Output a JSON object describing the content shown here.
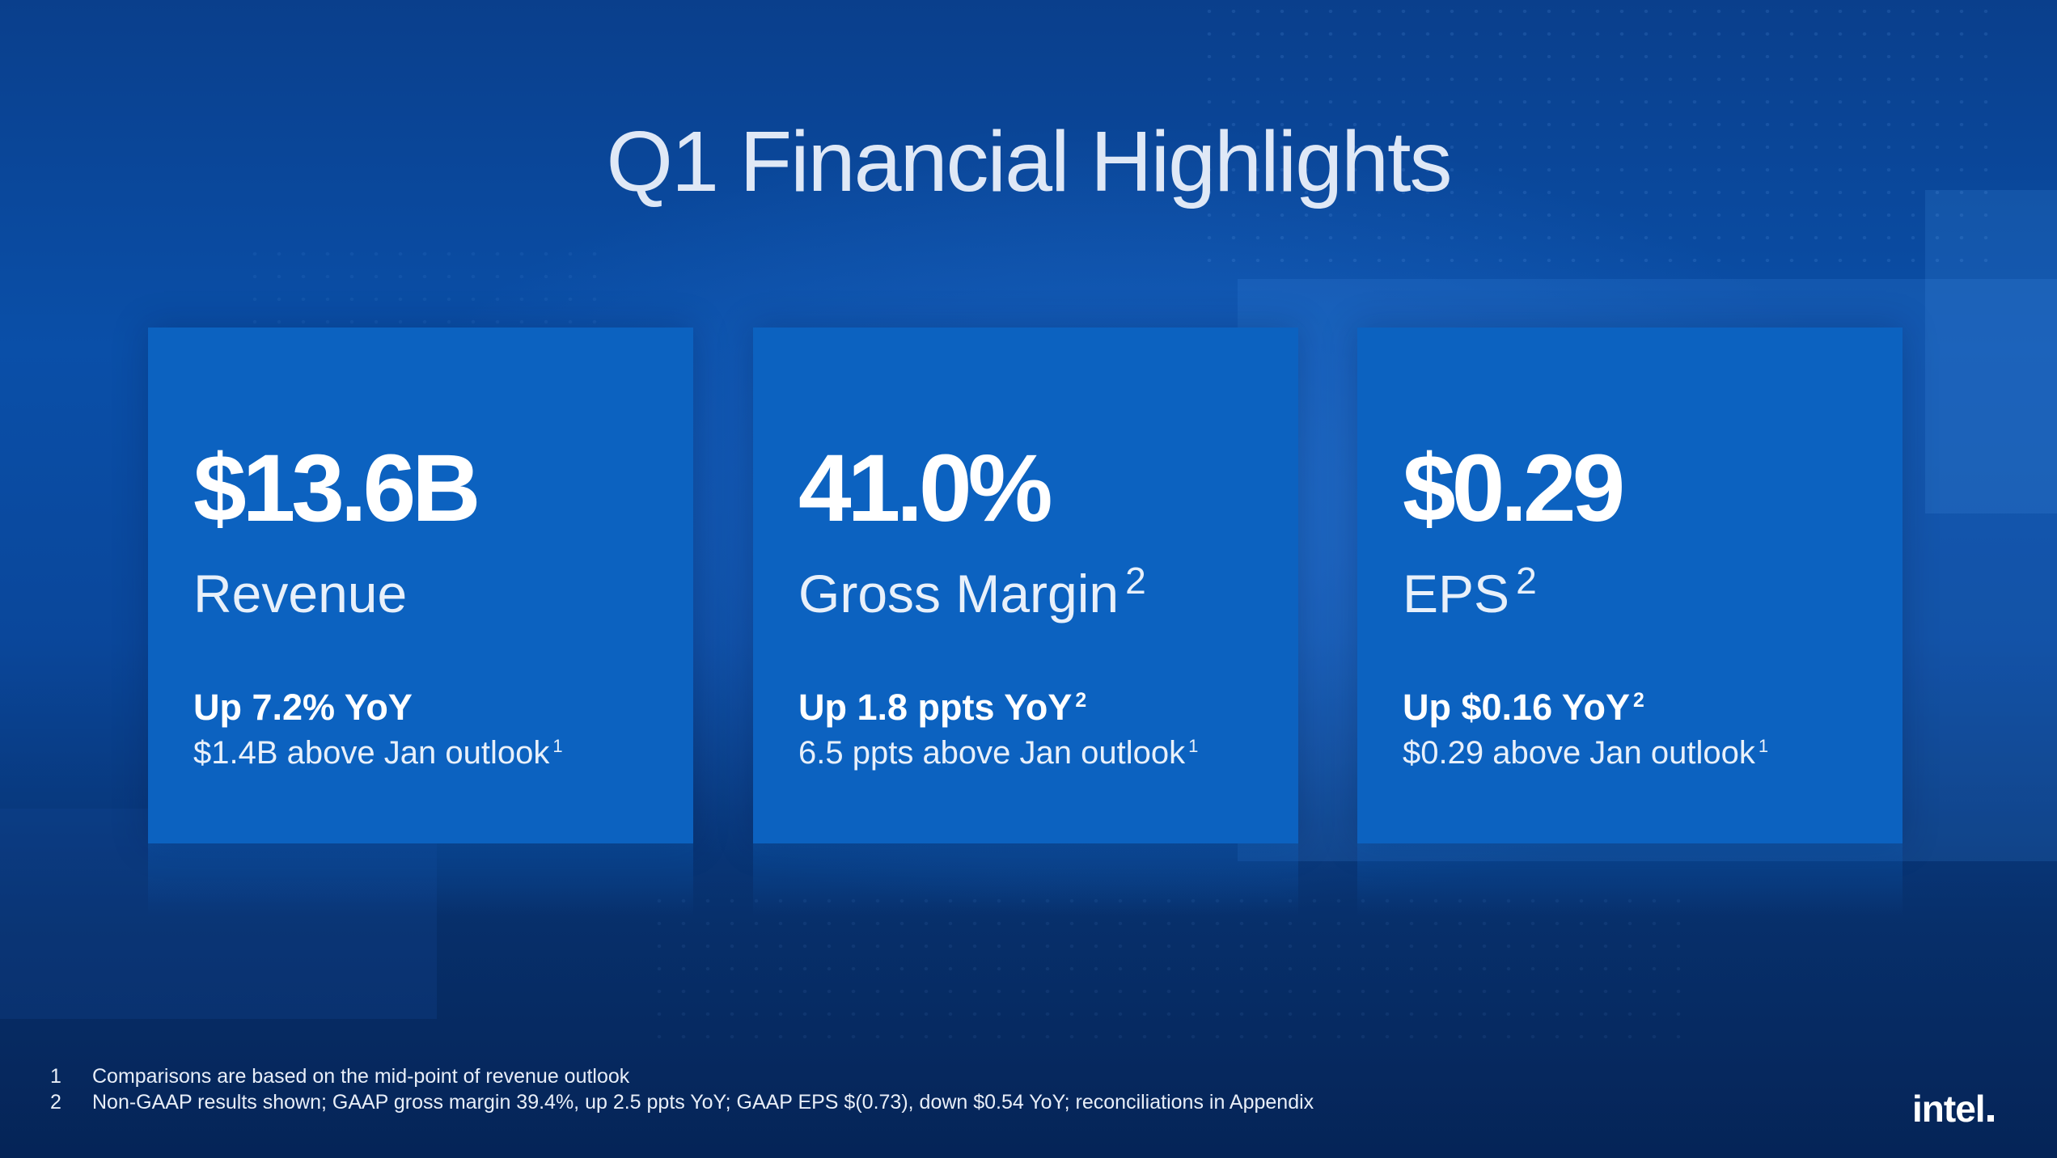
{
  "slide": {
    "title": "Q1 Financial Highlights",
    "cards": [
      {
        "metric": "$13.6B",
        "label": "Revenue",
        "label_footnote": "",
        "change": "Up 7.2% YoY",
        "change_footnote": "",
        "detail": "$1.4B above Jan outlook",
        "detail_footnote": "1"
      },
      {
        "metric": "41.0%",
        "label": "Gross Margin",
        "label_footnote": "2",
        "change": "Up 1.8 ppts YoY",
        "change_footnote": "2",
        "detail": "6.5 ppts above Jan outlook",
        "detail_footnote": "1"
      },
      {
        "metric": "$0.29",
        "label": "EPS",
        "label_footnote": "2",
        "change": "Up $0.16 YoY",
        "change_footnote": "2",
        "detail": "$0.29 above Jan outlook",
        "detail_footnote": "1"
      }
    ],
    "footnotes": [
      {
        "num": "1",
        "text": "Comparisons are based on the mid-point of revenue outlook"
      },
      {
        "num": "2",
        "text": "Non-GAAP results shown; GAAP gross margin 39.4%, up 2.5 ppts YoY; GAAP EPS $(0.73), down $0.54 YoY; reconciliations in Appendix"
      }
    ],
    "logo": "intel"
  },
  "colors": {
    "card_background": "#0c62c0",
    "title_text": "#dfe8f6",
    "background_top": "#0a3f8c",
    "background_bottom": "#052457"
  }
}
